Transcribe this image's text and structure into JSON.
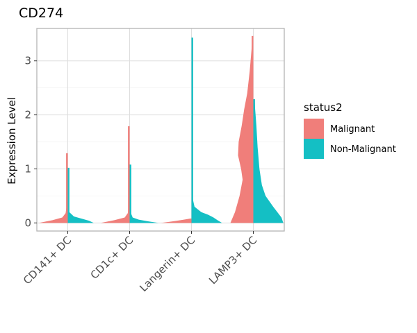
{
  "chart_data": {
    "type": "violin",
    "title": "CD274",
    "ylabel": "Expression Level",
    "xlabel": "",
    "ylim": [
      -0.15,
      3.6
    ],
    "yticks": [
      0,
      1,
      2,
      3
    ],
    "grid": true,
    "legend": {
      "title": "status2",
      "placement": "right",
      "entries": [
        {
          "name": "Malignant",
          "color": "#F07E7A"
        },
        {
          "name": "Non-Malignant",
          "color": "#14BFC4"
        }
      ]
    },
    "categories": [
      "CD141+ DC",
      "CD1c+ DC",
      "Langerin+ DC",
      "LAMP3+ DC"
    ],
    "series": [
      {
        "name": "Malignant",
        "color": "#F07E7A",
        "max": [
          1.29,
          1.79,
          0.08,
          3.46
        ],
        "profile": [
          [
            [
              0,
              0.95
            ],
            [
              0.05,
              0.5
            ],
            [
              0.1,
              0.18
            ],
            [
              0.18,
              0.07
            ],
            [
              0.35,
              0.03
            ],
            [
              0.7,
              0.02
            ],
            [
              1.0,
              0.015
            ],
            [
              1.1,
              0.01
            ],
            [
              1.29,
              0.008
            ]
          ],
          [
            [
              0,
              0.95
            ],
            [
              0.05,
              0.5
            ],
            [
              0.1,
              0.16
            ],
            [
              0.18,
              0.06
            ],
            [
              0.4,
              0.02
            ],
            [
              1.0,
              0.015
            ],
            [
              1.5,
              0.01
            ],
            [
              1.79,
              0.008
            ]
          ],
          [
            [
              0,
              1.0
            ],
            [
              0.03,
              0.6
            ],
            [
              0.06,
              0.25
            ],
            [
              0.08,
              0.05
            ]
          ],
          [
            [
              0,
              0.75
            ],
            [
              0.2,
              0.6
            ],
            [
              0.5,
              0.45
            ],
            [
              0.8,
              0.35
            ],
            [
              1.0,
              0.4
            ],
            [
              1.25,
              0.5
            ],
            [
              1.5,
              0.48
            ],
            [
              1.8,
              0.38
            ],
            [
              2.1,
              0.3
            ],
            [
              2.4,
              0.2
            ],
            [
              2.8,
              0.12
            ],
            [
              3.2,
              0.06
            ],
            [
              3.46,
              0.02
            ]
          ]
        ]
      },
      {
        "name": "Non-Malignant",
        "color": "#14BFC4",
        "max": [
          1.02,
          1.08,
          3.43,
          2.29
        ],
        "profile": [
          [
            [
              0,
              0.85
            ],
            [
              0.04,
              0.7
            ],
            [
              0.08,
              0.45
            ],
            [
              0.12,
              0.2
            ],
            [
              0.2,
              0.05
            ],
            [
              0.4,
              0.02
            ],
            [
              0.8,
              0.015
            ],
            [
              1.02,
              0.01
            ]
          ],
          [
            [
              0,
              0.95
            ],
            [
              0.03,
              0.6
            ],
            [
              0.06,
              0.3
            ],
            [
              0.1,
              0.1
            ],
            [
              0.2,
              0.03
            ],
            [
              0.5,
              0.015
            ],
            [
              1.08,
              0.01
            ]
          ],
          [
            [
              0,
              1.0
            ],
            [
              0.05,
              0.85
            ],
            [
              0.1,
              0.72
            ],
            [
              0.15,
              0.55
            ],
            [
              0.2,
              0.32
            ],
            [
              0.3,
              0.1
            ],
            [
              0.45,
              0.04
            ],
            [
              1.0,
              0.02
            ],
            [
              2.0,
              0.015
            ],
            [
              3.43,
              0.01
            ]
          ],
          [
            [
              0,
              0.98
            ],
            [
              0.1,
              0.92
            ],
            [
              0.3,
              0.65
            ],
            [
              0.5,
              0.4
            ],
            [
              0.7,
              0.28
            ],
            [
              1.0,
              0.2
            ],
            [
              1.4,
              0.14
            ],
            [
              1.8,
              0.1
            ],
            [
              2.1,
              0.06
            ],
            [
              2.29,
              0.04
            ]
          ]
        ]
      }
    ]
  }
}
